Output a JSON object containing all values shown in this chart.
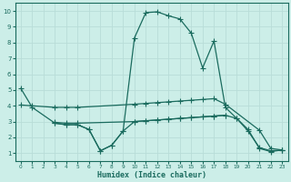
{
  "xlabel": "Humidex (Indice chaleur)",
  "ylabel": "",
  "bg_color": "#cceee8",
  "line_color": "#1a6b5e",
  "grid_color": "#b8ddd8",
  "xlim": [
    -0.5,
    23.5
  ],
  "ylim": [
    0.5,
    10.5
  ],
  "xticks": [
    0,
    1,
    2,
    3,
    4,
    5,
    6,
    7,
    8,
    9,
    10,
    11,
    12,
    13,
    14,
    15,
    16,
    17,
    18,
    19,
    20,
    21,
    22,
    23
  ],
  "yticks": [
    1,
    2,
    3,
    4,
    5,
    6,
    7,
    8,
    9,
    10
  ],
  "line1": {
    "x": [
      0,
      1,
      3,
      4,
      5,
      6,
      7,
      8,
      9,
      10,
      11,
      12,
      13,
      14,
      15,
      16,
      17,
      18,
      19,
      20,
      21,
      22,
      23
    ],
    "y": [
      5.1,
      3.9,
      2.9,
      2.8,
      2.8,
      2.5,
      1.15,
      1.5,
      2.4,
      8.3,
      9.9,
      9.95,
      9.7,
      9.5,
      8.6,
      6.4,
      8.1,
      3.9,
      3.2,
      2.5,
      1.3,
      1.1,
      1.2
    ]
  },
  "line2": {
    "x": [
      0,
      1,
      3,
      4,
      5,
      10,
      11,
      12,
      13,
      14,
      15,
      16,
      17,
      18,
      21,
      22,
      23
    ],
    "y": [
      4.05,
      4.0,
      3.9,
      3.9,
      3.9,
      4.1,
      4.15,
      4.2,
      4.25,
      4.3,
      4.35,
      4.4,
      4.45,
      4.1,
      2.45,
      1.3,
      1.2
    ]
  },
  "line3": {
    "x": [
      3,
      4,
      5,
      10,
      11,
      12,
      13,
      14,
      15,
      16,
      17,
      18,
      19,
      20,
      21,
      22,
      23
    ],
    "y": [
      2.95,
      2.9,
      2.9,
      3.0,
      3.05,
      3.1,
      3.15,
      3.2,
      3.25,
      3.3,
      3.35,
      3.4,
      3.2,
      2.4,
      1.35,
      1.15,
      1.2
    ]
  },
  "line4": {
    "x": [
      3,
      4,
      5,
      6,
      7,
      8,
      9,
      10,
      11,
      12,
      13,
      14,
      15,
      16,
      17,
      18
    ],
    "y": [
      2.9,
      2.8,
      2.8,
      2.5,
      1.15,
      1.5,
      2.4,
      3.0,
      3.05,
      3.1,
      3.15,
      3.2,
      3.25,
      3.3,
      3.35,
      3.4
    ]
  }
}
